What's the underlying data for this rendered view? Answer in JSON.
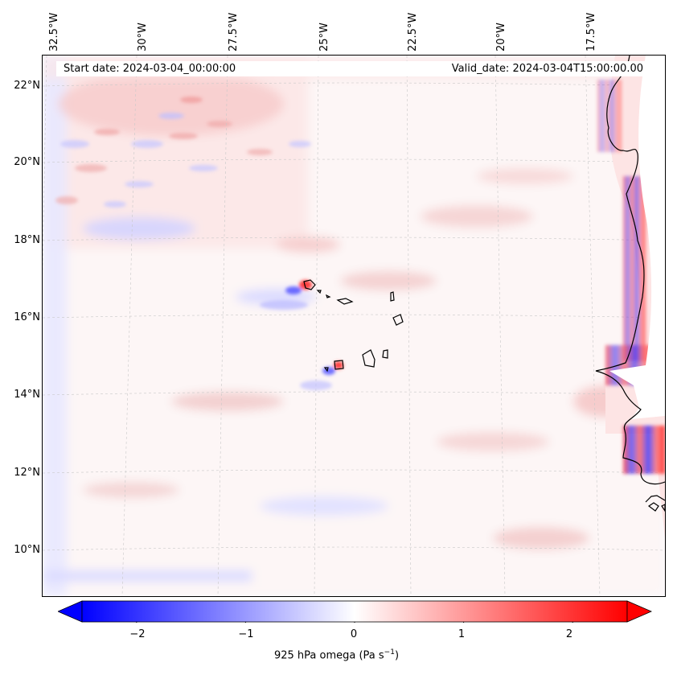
{
  "map": {
    "start_label": "Start date: 2024-03-04_00:00:00",
    "valid_label": "Valid_date: 2024-03-04T15:00:00.00",
    "lon_ticks": [
      "32.5°W",
      "30°W",
      "27.5°W",
      "25°W",
      "22.5°W",
      "20°W",
      "17.5°W"
    ],
    "lat_ticks": [
      "22°N",
      "20°N",
      "18°N",
      "16°N",
      "14°N",
      "12°N",
      "10°N"
    ],
    "colors": {
      "negative": "#0000ff",
      "zero": "#ffffff",
      "positive": "#ff0000",
      "coast": "#000000",
      "grid": "#c8c8c8"
    }
  },
  "colorbar": {
    "label": "925 hPa omega (Pa s",
    "label_sup": "−1",
    "label_close": ")",
    "vmin": -2.5,
    "vmax": 2.5,
    "ticks": [
      "−2",
      "−1",
      "0",
      "1",
      "2"
    ],
    "tick_values": [
      -2,
      -1,
      0,
      1,
      2
    ]
  }
}
